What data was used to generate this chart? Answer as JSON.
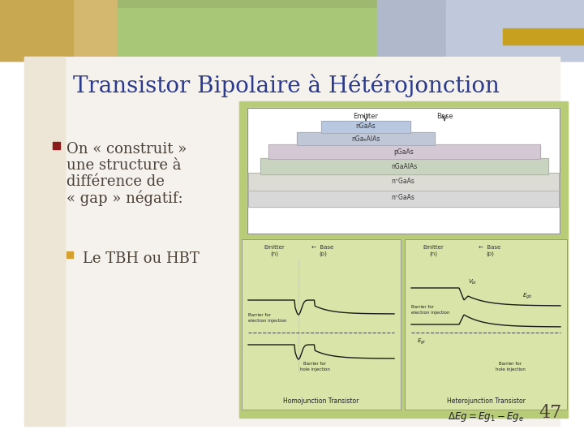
{
  "title": "Transistor Bipolaire à Hétérojonction",
  "title_color": "#2B3A8C",
  "title_fontsize": 20,
  "bg_slide": "#F0EBE0",
  "bg_left_margin": "#E8E0D0",
  "bg_main": "#F5F2ED",
  "header_left_color": "#D4C080",
  "header_mid_color": "#C8D88C",
  "header_right_color": "#B8C4D8",
  "bullet1_color": "#8B1A1A",
  "bullet1_text_lines": [
    "On « construit »",
    "une structure à",
    "différence de",
    "« gap » négatif:"
  ],
  "bullet2_color": "#D4A030",
  "bullet2_text": "Le TBH ou HBT",
  "diagram_bg": "#B8CC78",
  "upper_diagram_bg": "#FFFFFF",
  "lower_diagram_bg": "#D4DDA0",
  "page_number": "47",
  "text_color": "#4A4035",
  "font_family": "serif"
}
